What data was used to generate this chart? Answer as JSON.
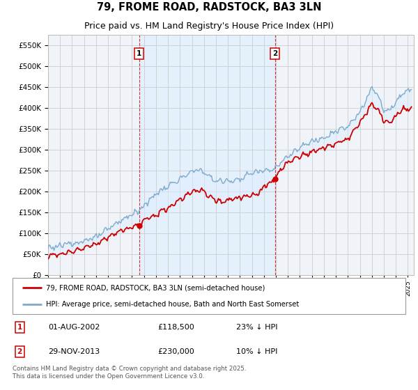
{
  "title": "79, FROME ROAD, RADSTOCK, BA3 3LN",
  "subtitle": "Price paid vs. HM Land Registry's House Price Index (HPI)",
  "legend_line1": "79, FROME ROAD, RADSTOCK, BA3 3LN (semi-detached house)",
  "legend_line2": "HPI: Average price, semi-detached house, Bath and North East Somerset",
  "footnote": "Contains HM Land Registry data © Crown copyright and database right 2025.\nThis data is licensed under the Open Government Licence v3.0.",
  "sale1_label": "1",
  "sale1_date": "01-AUG-2002",
  "sale1_price": "£118,500",
  "sale1_hpi": "23% ↓ HPI",
  "sale2_label": "2",
  "sale2_date": "29-NOV-2013",
  "sale2_price": "£230,000",
  "sale2_hpi": "10% ↓ HPI",
  "sale1_x": 2002.583,
  "sale1_y": 118500,
  "sale2_x": 2013.917,
  "sale2_y": 230000,
  "vline1_x": 2002.583,
  "vline2_x": 2013.917,
  "ylim": [
    0,
    575000
  ],
  "xlim_start": 1995.0,
  "xlim_end": 2025.5,
  "red_color": "#cc0000",
  "blue_color": "#7eaacc",
  "fill_color": "#ddeeff",
  "bg_color": "#f0f4f8",
  "grid_color": "#cccccc",
  "title_fontsize": 10.5,
  "subtitle_fontsize": 9
}
